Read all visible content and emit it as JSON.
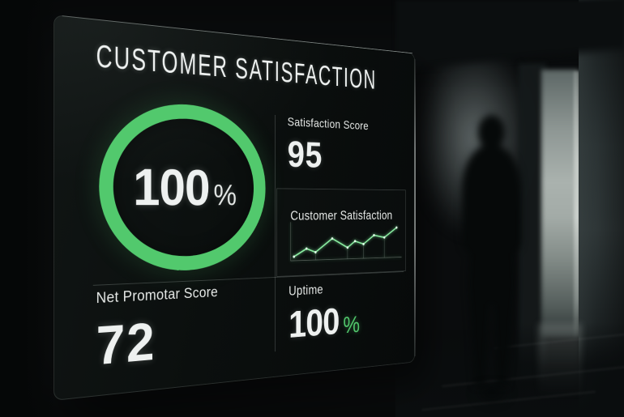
{
  "window": {
    "title": "CUSTOMER SATISFACTION"
  },
  "gauge": {
    "value": "100",
    "unit": "%"
  },
  "cards": {
    "satisfaction": {
      "label": "Satisfaction Score",
      "value": "95"
    },
    "trend": {
      "label": "Customer Satisfaction"
    },
    "nps": {
      "label": "Net Promotar Score",
      "value": "72"
    },
    "uptime": {
      "label": "Uptime",
      "value": "100",
      "unit": "%"
    }
  },
  "colors": {
    "accent_green": "#52c96d",
    "line_green": "#8aeda1",
    "dot_green": "#e2fbe9",
    "text_primary": "#eef1f0",
    "divider_gray": "#969e9a"
  },
  "chart_data": [
    {
      "type": "pie",
      "style": "donut-ring-gauge",
      "title": "Customer Satisfaction gauge",
      "labels": [
        "Satisfaction"
      ],
      "values": [
        100
      ],
      "max": 100,
      "unit": "%",
      "center_label": "100%",
      "ring_color": "#52c96d"
    },
    {
      "type": "line",
      "title": "Customer Satisfaction",
      "x_pct": [
        2,
        13,
        21,
        36,
        50,
        57,
        65,
        75,
        85,
        97
      ],
      "values": [
        8,
        32,
        20,
        62,
        32,
        52,
        42,
        70,
        62,
        94
      ],
      "ylim": [
        0,
        100
      ],
      "grid": "drop-lines-at-local-minima",
      "dropline_indices": [
        2,
        4,
        6,
        8
      ],
      "legend": "none",
      "xlabel": "",
      "ylabel": ""
    }
  ]
}
